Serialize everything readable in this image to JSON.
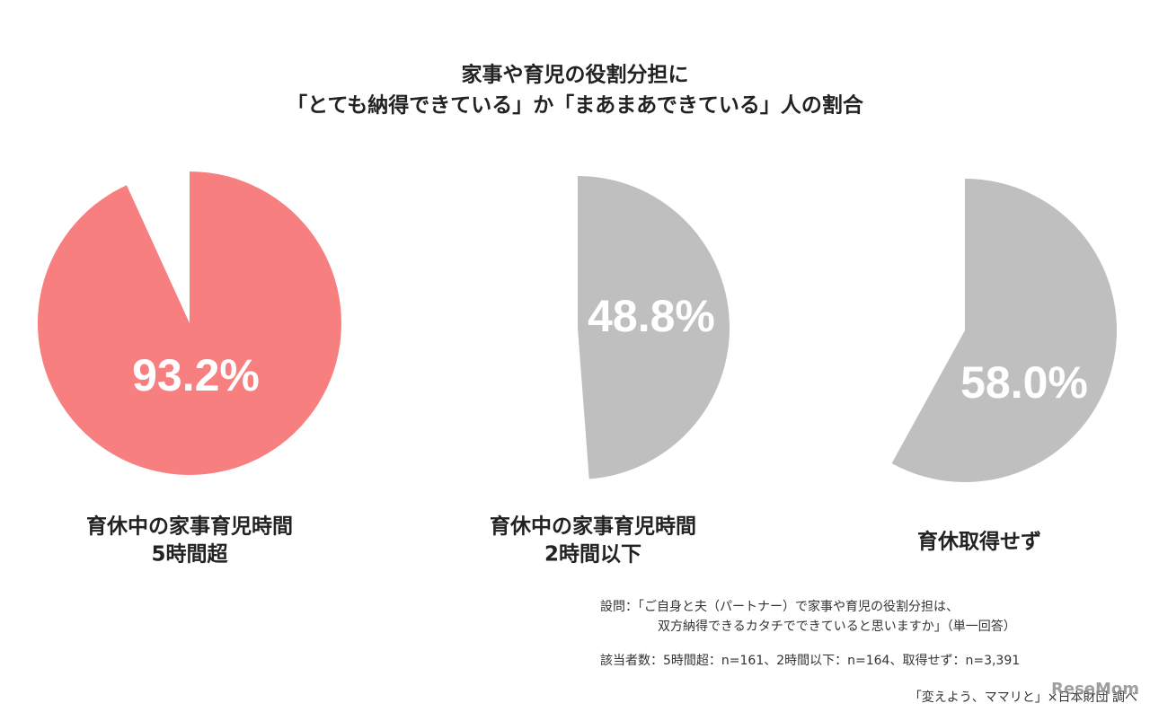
{
  "title": [
    "家事や育児の役割分担に",
    "「とても納得できている」か「まあまあできている」人の割合"
  ],
  "chart_data": [
    {
      "type": "pie",
      "label": [
        "育休中の家事育児時間",
        "5時間超"
      ],
      "values": [
        93.2
      ],
      "value_labels": [
        "93.2%"
      ],
      "color": "#f77f7f"
    },
    {
      "type": "pie",
      "label": [
        "育休中の家事育児時間",
        "2時間以下"
      ],
      "values": [
        48.8
      ],
      "value_labels": [
        "48.8%"
      ],
      "color": "#bfbfbf"
    },
    {
      "type": "pie",
      "label": [
        "育休取得せず"
      ],
      "values": [
        58.0
      ],
      "value_labels": [
        "58.0%"
      ],
      "color": "#bfbfbf"
    }
  ],
  "question": [
    "設問：「ご自身と夫（パートナー）で家事や育児の役割分担は、",
    "双方納得できるカタチでできていると思いますか」（単一回答）"
  ],
  "sample": "該当者数：5時間超：n=161、2時間以下：n=164、取得せず：n=3,391",
  "source": "「変えよう、ママリと」×日本財団 調べ",
  "watermark": "ReseMom"
}
